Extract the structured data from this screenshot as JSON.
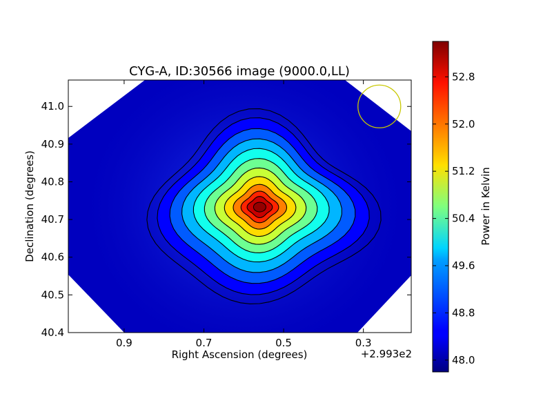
{
  "chart_data": {
    "type": "heatmap",
    "title": "CYG-A, ID:30566 image (9000.0,LL)",
    "xlabel": "Right Ascension (degrees)",
    "ylabel": "Declination (degrees)",
    "x_offset_label": "+2.993e2",
    "xlim": [
      1.04,
      0.18
    ],
    "ylim": [
      40.4,
      41.07
    ],
    "xticks": [
      0.9,
      0.7,
      0.5,
      0.3
    ],
    "xtick_labels": [
      "0.9",
      "0.7",
      "0.5",
      "0.3"
    ],
    "yticks": [
      40.4,
      40.5,
      40.6,
      40.7,
      40.8,
      40.9,
      41.0
    ],
    "ytick_labels": [
      "40.4",
      "40.5",
      "40.6",
      "40.7",
      "40.8",
      "40.9",
      "41.0"
    ],
    "peak": {
      "ra": 0.56,
      "dec": 40.733,
      "value": 53.3
    },
    "background_value": 47.9,
    "contour_levels": [
      48.1,
      48.5,
      49.0,
      49.5,
      50.0,
      50.5,
      51.0,
      51.5,
      52.0,
      52.5,
      53.0
    ],
    "contour_color": "#000000",
    "beam": {
      "ra": 0.26,
      "dec": 41.0,
      "color": "#c8c800"
    },
    "colorbar": {
      "label": "Power in Kelvin",
      "min": 47.8,
      "max": 53.4,
      "ticks": [
        48.0,
        48.8,
        49.6,
        50.4,
        51.2,
        52.0,
        52.8
      ],
      "tick_labels": [
        "48.0",
        "48.8",
        "49.6",
        "50.4",
        "51.2",
        "52.0",
        "52.8"
      ],
      "colormap": "jet"
    }
  }
}
